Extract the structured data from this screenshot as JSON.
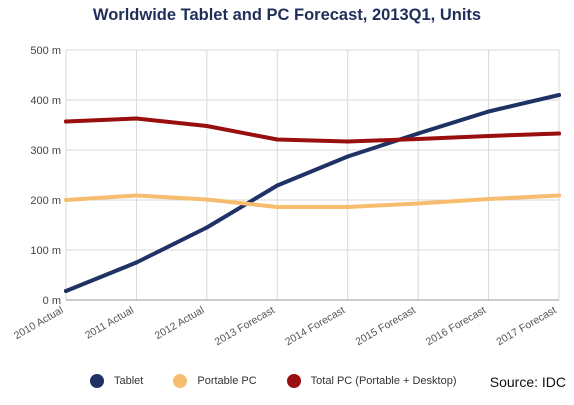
{
  "chart_data": {
    "type": "line",
    "title": "Worldwide Tablet and PC Forecast, 2013Q1, Units",
    "xlabel": "",
    "ylabel": "",
    "categories": [
      "2010 Actual",
      "2011 Actual",
      "2012 Actual",
      "2013 Forecast",
      "2014 Forecast",
      "2015 Forecast",
      "2016 Forecast",
      "2017 Forecast"
    ],
    "ylim": [
      0,
      500
    ],
    "yticks": [
      0,
      100,
      200,
      300,
      400,
      500
    ],
    "ytick_labels": [
      "0 m",
      "100 m",
      "200 m",
      "300 m",
      "400 m",
      "500 m"
    ],
    "grid": true,
    "legend_position": "bottom",
    "series": [
      {
        "name": "Tablet",
        "color": "#1f3264",
        "values": [
          18,
          75,
          145,
          229,
          287,
          333,
          377,
          410
        ]
      },
      {
        "name": "Portable PC",
        "color": "#f7bd6e",
        "values": [
          200,
          209,
          201,
          186,
          186,
          193,
          202,
          209
        ]
      },
      {
        "name": "Total PC (Portable + Desktop)",
        "color": "#990e0e",
        "values": [
          357,
          363,
          348,
          321,
          317,
          322,
          328,
          333
        ]
      }
    ],
    "source": "Source: IDC"
  }
}
